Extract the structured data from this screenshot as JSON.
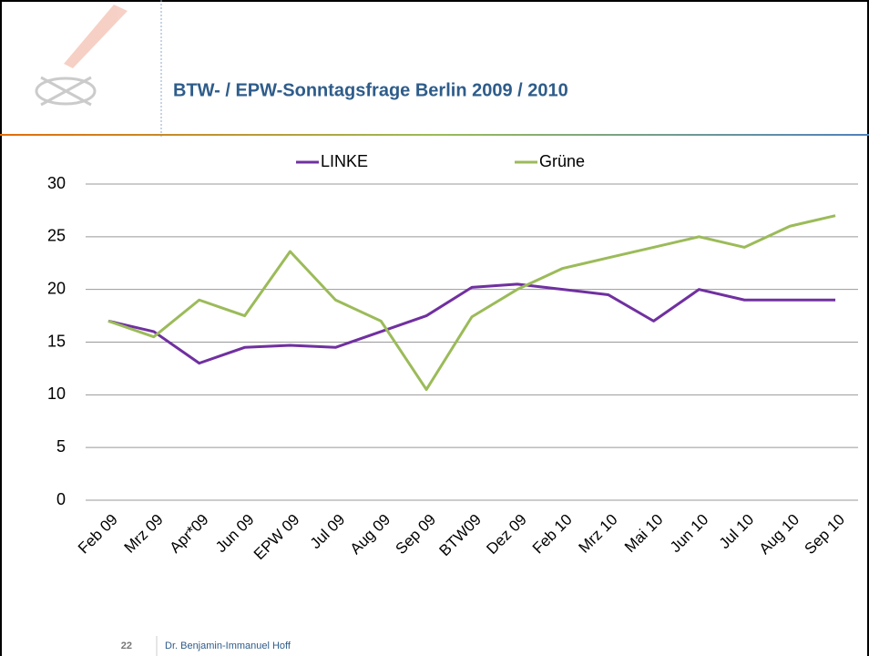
{
  "chart_data": {
    "type": "line",
    "title": "BTW- / EPW-Sonntagsfrage Berlin 2009 / 2010",
    "categories": [
      "Feb 09",
      "Mrz 09",
      "Apr*09",
      "Jun 09",
      "EPW 09",
      "Jul 09",
      "Aug 09",
      "Sep 09",
      "BTW09",
      "Dez 09",
      "Feb 10",
      "Mrz 10",
      "Mai 10",
      "Jun 10",
      "Jul 10",
      "Aug 10",
      "Sep 10"
    ],
    "series": [
      {
        "name": "LINKE",
        "color": "#7030a0",
        "values": [
          17,
          16,
          13,
          14.5,
          14.7,
          14.5,
          16,
          17.5,
          20.2,
          20.5,
          20,
          19.5,
          17,
          20,
          19,
          19,
          19
        ]
      },
      {
        "name": "Grüne",
        "color": "#9bbb59",
        "values": [
          17,
          15.5,
          19,
          17.5,
          23.6,
          19,
          17,
          10.5,
          17.4,
          20,
          22,
          23,
          24,
          25,
          24,
          26,
          27
        ]
      }
    ],
    "ylim": [
      0,
      30
    ],
    "yticks": [
      0,
      5,
      10,
      15,
      20,
      25,
      30
    ],
    "grid": true
  },
  "footer": {
    "page": "22",
    "author": "Dr. Benjamin-Immanuel Hoff"
  }
}
